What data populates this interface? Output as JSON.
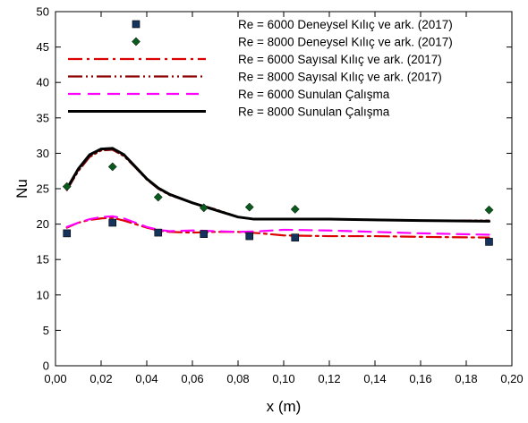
{
  "chart_data": {
    "type": "line",
    "xlabel": "x (m)",
    "ylabel": "Nu",
    "xlim": [
      0,
      0.2
    ],
    "ylim": [
      0,
      50
    ],
    "x_ticks": [
      0,
      0.02,
      0.04,
      0.06,
      0.08,
      0.1,
      0.12,
      0.14,
      0.16,
      0.18,
      0.2
    ],
    "x_tick_labels": [
      "0,00",
      "0,02",
      "0,04",
      "0,06",
      "0,08",
      "0,10",
      "0,12",
      "0,14",
      "0,16",
      "0,18",
      "0,20"
    ],
    "y_ticks": [
      0,
      5,
      10,
      15,
      20,
      25,
      30,
      35,
      40,
      45,
      50
    ],
    "y_tick_labels": [
      "0",
      "5",
      "10",
      "15",
      "20",
      "25",
      "30",
      "35",
      "40",
      "45",
      "50"
    ],
    "grid": false,
    "legend_position": "top-right",
    "series": [
      {
        "name": "Re = 6000 Deneysel Kılıç ve ark. (2017)",
        "kind": "marker",
        "marker": "square",
        "color": "#16335e",
        "x": [
          0.005,
          0.025,
          0.045,
          0.065,
          0.085,
          0.105,
          0.19
        ],
        "y": [
          18.7,
          20.2,
          18.8,
          18.6,
          18.3,
          18.1,
          17.5
        ]
      },
      {
        "name": "Re = 8000 Deneysel Kılıç ve ark. (2017)",
        "kind": "marker",
        "marker": "diamond",
        "color": "#0a5a1e",
        "x": [
          0.005,
          0.025,
          0.045,
          0.065,
          0.085,
          0.105,
          0.19
        ],
        "y": [
          25.3,
          28.1,
          23.8,
          22.3,
          22.4,
          22.1,
          22.0
        ]
      },
      {
        "name": "Re = 6000 Sayısal Kılıç ve ark. (2017)",
        "kind": "line",
        "dash": "dash-dot",
        "color": "#dd0000",
        "x": [
          0.005,
          0.01,
          0.015,
          0.02,
          0.025,
          0.03,
          0.035,
          0.04,
          0.045,
          0.05,
          0.06,
          0.07,
          0.08,
          0.09,
          0.1,
          0.12,
          0.14,
          0.16,
          0.19
        ],
        "y": [
          19.5,
          20.2,
          20.6,
          20.8,
          20.9,
          20.5,
          20.0,
          19.5,
          19.1,
          18.9,
          18.8,
          18.9,
          18.9,
          18.7,
          18.4,
          18.3,
          18.3,
          18.2,
          18.1
        ]
      },
      {
        "name": "Re = 8000 Sayısal Kılıç ve ark. (2017)",
        "kind": "line",
        "dash": "dash-dot-dot",
        "color": "#8b0000",
        "x": [
          0.005,
          0.01,
          0.015,
          0.02,
          0.025,
          0.03,
          0.035,
          0.04,
          0.045,
          0.05,
          0.06,
          0.07,
          0.08,
          0.087,
          0.1,
          0.12,
          0.14,
          0.16,
          0.19
        ],
        "y": [
          24.8,
          27.5,
          29.5,
          30.4,
          30.5,
          29.6,
          28.0,
          26.3,
          25.0,
          24.1,
          23.0,
          22.1,
          21.0,
          20.7,
          20.7,
          20.7,
          20.6,
          20.5,
          20.5
        ]
      },
      {
        "name": "Re = 6000 Sunulan Çalışma",
        "kind": "line",
        "dash": "dash",
        "color": "#ff00ff",
        "x": [
          0.005,
          0.01,
          0.015,
          0.02,
          0.025,
          0.03,
          0.035,
          0.04,
          0.045,
          0.05,
          0.06,
          0.07,
          0.08,
          0.09,
          0.1,
          0.12,
          0.14,
          0.16,
          0.19
        ],
        "y": [
          19.6,
          20.2,
          20.7,
          21.0,
          21.1,
          20.8,
          20.2,
          19.6,
          19.2,
          19.0,
          19.1,
          19.0,
          18.9,
          19.0,
          19.2,
          19.1,
          18.9,
          18.7,
          18.5
        ]
      },
      {
        "name": "Re = 8000 Sunulan Çalışma",
        "kind": "line",
        "dash": "solid",
        "color": "#000000",
        "x": [
          0.005,
          0.01,
          0.015,
          0.02,
          0.025,
          0.03,
          0.035,
          0.04,
          0.045,
          0.05,
          0.06,
          0.07,
          0.08,
          0.087,
          0.1,
          0.12,
          0.14,
          0.16,
          0.19
        ],
        "y": [
          25.0,
          27.8,
          29.8,
          30.6,
          30.7,
          29.8,
          28.1,
          26.4,
          25.1,
          24.2,
          23.0,
          22.0,
          21.0,
          20.7,
          20.7,
          20.7,
          20.6,
          20.5,
          20.4
        ]
      }
    ]
  }
}
